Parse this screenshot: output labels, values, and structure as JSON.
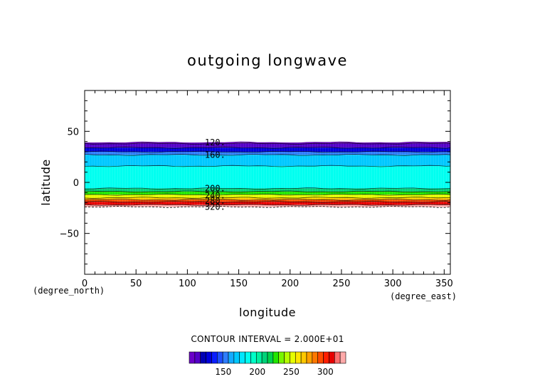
{
  "chart_data": {
    "type": "contour",
    "title": "outgoing longwave",
    "xlabel": "longitude",
    "ylabel": "latitude",
    "x_unit": "(degree_east)",
    "y_unit": "(degree_north)",
    "xlim": [
      0,
      356
    ],
    "ylim": [
      -90,
      90
    ],
    "xticks": [
      0,
      50,
      100,
      150,
      200,
      250,
      300,
      350
    ],
    "yticks": [
      -50,
      0,
      50
    ],
    "contour_interval_text": "CONTOUR INTERVAL = 2.000E+01",
    "contour_interval": 20,
    "data_lat_range": [
      -24,
      39
    ],
    "levels": [
      {
        "value": 100,
        "lat": 38
      },
      {
        "value": 120,
        "lat": 34
      },
      {
        "value": 140,
        "lat": 30
      },
      {
        "value": 160,
        "lat": 27
      },
      {
        "value": 180,
        "lat": 16
      },
      {
        "value": 200,
        "lat": -6
      },
      {
        "value": 220,
        "lat": -9
      },
      {
        "value": 240,
        "lat": -12
      },
      {
        "value": 260,
        "lat": -15
      },
      {
        "value": 280,
        "lat": -17
      },
      {
        "value": 300,
        "lat": -19
      },
      {
        "value": 320,
        "lat": -22
      }
    ],
    "contour_labels": [
      {
        "text": "120.",
        "lat": 39
      },
      {
        "text": "160.",
        "lat": 27
      },
      {
        "text": "200.",
        "lat": -6
      },
      {
        "text": "240.",
        "lat": -13
      },
      {
        "text": "280.",
        "lat": -18
      },
      {
        "text": "320.",
        "lat": -24
      }
    ],
    "colorbar": {
      "min": 100,
      "max": 330,
      "ticks": [
        150,
        200,
        250,
        300
      ],
      "colors": [
        "#6a00c8",
        "#5400c8",
        "#0000b4",
        "#0000dc",
        "#0a1eff",
        "#1e50ff",
        "#2e7dff",
        "#14aaff",
        "#00c8ff",
        "#00e6ff",
        "#00fff0",
        "#00ffc8",
        "#00f0a0",
        "#00d278",
        "#00d24b",
        "#22e600",
        "#78f500",
        "#b4ff00",
        "#e6ff00",
        "#ffe600",
        "#ffc800",
        "#ffa000",
        "#ff7800",
        "#ff4b00",
        "#ff1e00",
        "#e60000",
        "#ff6e6e",
        "#ffaaaa"
      ]
    }
  }
}
